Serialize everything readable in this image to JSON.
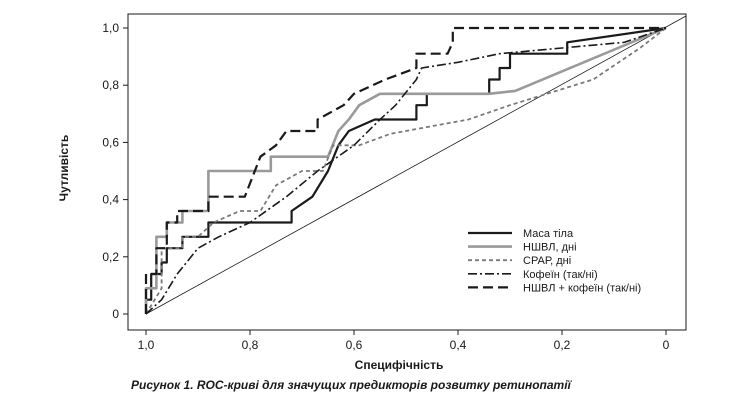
{
  "chart_data": {
    "type": "line",
    "caption": "Рисунок 1. ROC-криві для значущих предикторів розвитку ретинопатії",
    "xlabel": "Специфічність",
    "ylabel": "Чутливість",
    "xlim": [
      1.0,
      0.0
    ],
    "ylim": [
      0.0,
      1.0
    ],
    "x_reversed": true,
    "x_ticks": [
      1.0,
      0.8,
      0.6,
      0.4,
      0.2,
      0.0
    ],
    "x_tick_labels": [
      "1,0",
      "0,8",
      "0,6",
      "0,4",
      "0,2",
      "0"
    ],
    "y_ticks": [
      0.0,
      0.2,
      0.4,
      0.6,
      0.8,
      1.0
    ],
    "y_tick_labels": [
      "0",
      "0,2",
      "0,4",
      "0,6",
      "0,8",
      "1,0"
    ],
    "grid": false,
    "legend_position": "bottom-right",
    "reference_line": {
      "from": [
        1.0,
        0.0
      ],
      "to": [
        0.0,
        1.0
      ]
    },
    "series": [
      {
        "name": "Маса тіла",
        "style": "solid",
        "color": "#1a1a1a",
        "width": 2.2,
        "points": [
          [
            1.0,
            0.0
          ],
          [
            1.0,
            0.05
          ],
          [
            0.99,
            0.05
          ],
          [
            0.99,
            0.14
          ],
          [
            0.97,
            0.14
          ],
          [
            0.97,
            0.18
          ],
          [
            0.96,
            0.18
          ],
          [
            0.96,
            0.23
          ],
          [
            0.93,
            0.23
          ],
          [
            0.93,
            0.27
          ],
          [
            0.88,
            0.27
          ],
          [
            0.88,
            0.32
          ],
          [
            0.72,
            0.32
          ],
          [
            0.72,
            0.36
          ],
          [
            0.68,
            0.41
          ],
          [
            0.65,
            0.5
          ],
          [
            0.63,
            0.59
          ],
          [
            0.61,
            0.64
          ],
          [
            0.56,
            0.68
          ],
          [
            0.48,
            0.68
          ],
          [
            0.48,
            0.73
          ],
          [
            0.46,
            0.73
          ],
          [
            0.46,
            0.77
          ],
          [
            0.34,
            0.77
          ],
          [
            0.34,
            0.82
          ],
          [
            0.32,
            0.82
          ],
          [
            0.32,
            0.86
          ],
          [
            0.3,
            0.86
          ],
          [
            0.3,
            0.91
          ],
          [
            0.19,
            0.91
          ],
          [
            0.19,
            0.95
          ],
          [
            0.0,
            1.0
          ]
        ]
      },
      {
        "name": "НШВЛ, дні",
        "style": "solid",
        "color": "#9a9a9a",
        "width": 2.6,
        "points": [
          [
            1.0,
            0.0
          ],
          [
            1.0,
            0.09
          ],
          [
            0.98,
            0.09
          ],
          [
            0.98,
            0.27
          ],
          [
            0.96,
            0.27
          ],
          [
            0.96,
            0.32
          ],
          [
            0.93,
            0.32
          ],
          [
            0.93,
            0.36
          ],
          [
            0.88,
            0.36
          ],
          [
            0.88,
            0.5
          ],
          [
            0.76,
            0.5
          ],
          [
            0.76,
            0.55
          ],
          [
            0.65,
            0.55
          ],
          [
            0.63,
            0.64
          ],
          [
            0.61,
            0.68
          ],
          [
            0.59,
            0.73
          ],
          [
            0.55,
            0.77
          ],
          [
            0.34,
            0.77
          ],
          [
            0.29,
            0.78
          ],
          [
            0.0,
            1.0
          ]
        ]
      },
      {
        "name": "СРАР, дні",
        "style": "dotted",
        "color": "#7a7a7a",
        "width": 1.8,
        "points": [
          [
            1.0,
            0.0
          ],
          [
            0.97,
            0.09
          ],
          [
            0.97,
            0.23
          ],
          [
            0.93,
            0.23
          ],
          [
            0.93,
            0.27
          ],
          [
            0.9,
            0.27
          ],
          [
            0.87,
            0.32
          ],
          [
            0.82,
            0.36
          ],
          [
            0.78,
            0.36
          ],
          [
            0.75,
            0.45
          ],
          [
            0.7,
            0.5
          ],
          [
            0.66,
            0.5
          ],
          [
            0.64,
            0.59
          ],
          [
            0.59,
            0.59
          ],
          [
            0.53,
            0.63
          ],
          [
            0.38,
            0.68
          ],
          [
            0.3,
            0.73
          ],
          [
            0.14,
            0.82
          ],
          [
            0.05,
            0.93
          ],
          [
            0.0,
            1.0
          ]
        ]
      },
      {
        "name": "Кофеїн (так/ні)",
        "style": "dashdot",
        "color": "#1a1a1a",
        "width": 1.6,
        "points": [
          [
            1.0,
            0.0
          ],
          [
            0.97,
            0.05
          ],
          [
            0.94,
            0.14
          ],
          [
            0.9,
            0.23
          ],
          [
            0.86,
            0.27
          ],
          [
            0.8,
            0.32
          ],
          [
            0.73,
            0.41
          ],
          [
            0.67,
            0.5
          ],
          [
            0.6,
            0.59
          ],
          [
            0.55,
            0.68
          ],
          [
            0.52,
            0.73
          ],
          [
            0.48,
            0.82
          ],
          [
            0.47,
            0.86
          ],
          [
            0.4,
            0.88
          ],
          [
            0.32,
            0.91
          ],
          [
            0.2,
            0.93
          ],
          [
            0.08,
            0.95
          ],
          [
            0.0,
            1.0
          ]
        ]
      },
      {
        "name": "НШВЛ + кофеїн (так/ні)",
        "style": "dashed",
        "color": "#1a1a1a",
        "width": 2.2,
        "points": [
          [
            1.0,
            0.0
          ],
          [
            1.0,
            0.14
          ],
          [
            0.98,
            0.14
          ],
          [
            0.98,
            0.23
          ],
          [
            0.96,
            0.23
          ],
          [
            0.96,
            0.32
          ],
          [
            0.94,
            0.32
          ],
          [
            0.94,
            0.36
          ],
          [
            0.88,
            0.36
          ],
          [
            0.88,
            0.41
          ],
          [
            0.81,
            0.41
          ],
          [
            0.78,
            0.55
          ],
          [
            0.75,
            0.59
          ],
          [
            0.73,
            0.64
          ],
          [
            0.67,
            0.64
          ],
          [
            0.67,
            0.68
          ],
          [
            0.62,
            0.73
          ],
          [
            0.6,
            0.77
          ],
          [
            0.54,
            0.82
          ],
          [
            0.48,
            0.86
          ],
          [
            0.48,
            0.91
          ],
          [
            0.42,
            0.91
          ],
          [
            0.41,
            0.95
          ],
          [
            0.41,
            1.0
          ],
          [
            0.0,
            1.0
          ]
        ]
      }
    ]
  }
}
